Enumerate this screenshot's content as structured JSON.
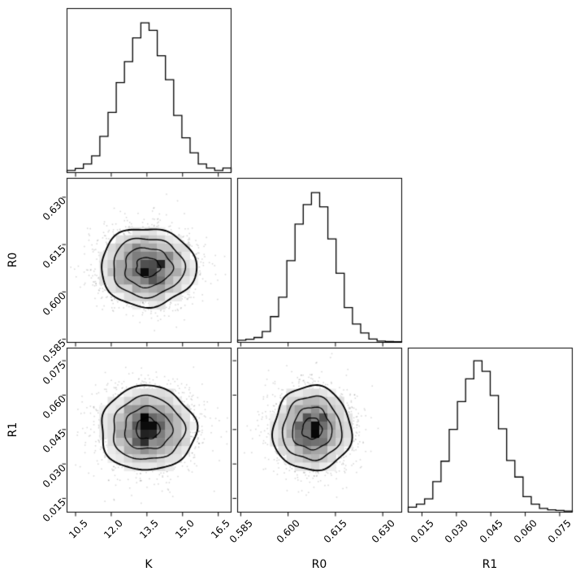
{
  "figure": {
    "kind": "corner plot (pairwise posterior distributions)",
    "background_color": "#ffffff",
    "axis_color": "#000000",
    "text_color": "#000000"
  },
  "chart_data": {
    "type": "corner",
    "title": "",
    "grid": false,
    "legend": false,
    "parameters": [
      {
        "name": "K",
        "range": [
          10.14,
          17.04
        ],
        "ticks": [
          10.5,
          12.0,
          13.5,
          15.0,
          16.5
        ],
        "tick_labels": [
          "10.5",
          "12.0",
          "13.5",
          "15.0",
          "16.5"
        ],
        "mean": 13.55,
        "sigma": 1.0
      },
      {
        "name": "R0",
        "range": [
          0.584,
          0.636
        ],
        "ticks": [
          0.585,
          0.6,
          0.615,
          0.63
        ],
        "tick_labels": [
          "0.585",
          "0.600",
          "0.615",
          "0.630"
        ],
        "mean": 0.6077,
        "sigma": 0.0062
      },
      {
        "name": "R1",
        "range": [
          0.009,
          0.0805
        ],
        "ticks": [
          0.015,
          0.03,
          0.045,
          0.06,
          0.075
        ],
        "tick_labels": [
          "0.015",
          "0.030",
          "0.045",
          "0.060",
          "0.075"
        ],
        "mean": 0.0452,
        "sigma": 0.0092
      }
    ],
    "diagonal_histograms": [
      {
        "param": "K",
        "bins": 20,
        "peak_height_frac": 0.91,
        "heights_rel": [
          0.012,
          0.025,
          0.055,
          0.11,
          0.24,
          0.4,
          0.6,
          0.74,
          0.9,
          1.0,
          0.95,
          0.78,
          0.62,
          0.38,
          0.23,
          0.13,
          0.055,
          0.028,
          0.012,
          0.028
        ]
      },
      {
        "param": "R0",
        "bins": 20,
        "peak_height_frac": 0.91,
        "heights_rel": [
          0.012,
          0.018,
          0.03,
          0.07,
          0.17,
          0.3,
          0.545,
          0.79,
          0.92,
          1.0,
          0.905,
          0.69,
          0.46,
          0.23,
          0.12,
          0.06,
          0.02,
          0.006,
          0.003,
          0.002
        ]
      },
      {
        "param": "R1",
        "bins": 20,
        "peak_height_frac": 0.92,
        "heights_rel": [
          0.03,
          0.05,
          0.085,
          0.2,
          0.335,
          0.545,
          0.73,
          0.88,
          1.0,
          0.93,
          0.77,
          0.55,
          0.34,
          0.23,
          0.1,
          0.05,
          0.022,
          0.013,
          0.009,
          0.005
        ]
      }
    ],
    "offdiagonal_panels": [
      {
        "x_param": "K",
        "y_param": "R0",
        "correlation": 0.0,
        "n_points": 2400,
        "contour_sigma_levels": [
          0.5,
          1.0,
          1.5,
          2.0
        ]
      },
      {
        "x_param": "K",
        "y_param": "R1",
        "correlation": 0.0,
        "n_points": 2400,
        "contour_sigma_levels": [
          0.5,
          1.0,
          1.5,
          2.0
        ]
      },
      {
        "x_param": "R0",
        "y_param": "R1",
        "correlation": 0.0,
        "n_points": 2400,
        "contour_sigma_levels": [
          0.5,
          1.0,
          1.5,
          2.0
        ]
      }
    ],
    "style": {
      "histogram_line_color": "#000000",
      "contour_line_color": "#000000",
      "scatter_point_color": "rgba(0,0,0,0.16)",
      "density_fill_colormap": "white-to-black greyscale"
    }
  }
}
